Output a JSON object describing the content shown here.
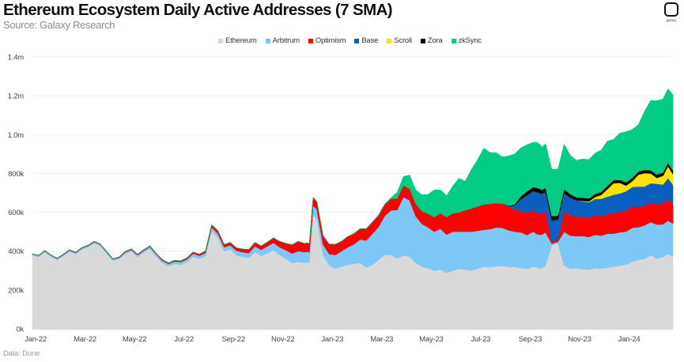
{
  "header": {
    "title": "Ethereum Ecosystem Daily Active Addresses (7 SMA)",
    "subtitle": "Source: Galaxy Research",
    "logo_text": "galaxy"
  },
  "footer": {
    "source": "Data: Dune"
  },
  "chart_data": {
    "type": "area",
    "stacked": true,
    "title": "Ethereum Ecosystem Daily Active Addresses (7 SMA)",
    "subtitle": "Source: Galaxy Research",
    "xlabel": "",
    "ylabel": "",
    "ylim": [
      0,
      1400000
    ],
    "yticks": [
      0,
      200000,
      400000,
      600000,
      800000,
      1000000,
      1200000,
      1400000
    ],
    "ytick_labels": [
      "0k",
      "200k",
      "400k",
      "600k",
      "800k",
      "1.0m",
      "1.2m",
      "1.4m"
    ],
    "xtick_labels": [
      "Jan-22",
      "Mar-22",
      "May-22",
      "Jul-22",
      "Sep-22",
      "Nov-22",
      "Jan-23",
      "Mar-23",
      "May-23",
      "Jul-23",
      "Sep-23",
      "Nov-23",
      "Jan-24"
    ],
    "xtick_months": [
      0,
      2,
      4,
      6,
      8,
      10,
      12,
      14,
      16,
      18,
      20,
      22,
      24
    ],
    "x_unit": "months since Jan 2022 (weekly samples)",
    "x_range": [
      0,
      25.9
    ],
    "grid": "horizontal",
    "legend_position": "top-center",
    "value_unit": "thousands of addresses",
    "x": [
      0,
      0.25,
      0.5,
      0.75,
      1,
      1.25,
      1.5,
      1.75,
      2,
      2.25,
      2.5,
      2.75,
      3,
      3.25,
      3.5,
      3.75,
      4,
      4.25,
      4.5,
      4.75,
      5,
      5.25,
      5.5,
      5.75,
      6,
      6.25,
      6.5,
      6.75,
      7,
      7.25,
      7.5,
      7.75,
      8,
      8.25,
      8.5,
      8.75,
      9,
      9.25,
      9.5,
      9.75,
      10,
      10.25,
      10.5,
      10.75,
      11,
      11.1,
      11.2,
      11.35,
      11.5,
      11.75,
      12,
      12.25,
      12.5,
      12.75,
      13,
      13.25,
      13.5,
      13.75,
      14,
      14.25,
      14.5,
      14.75,
      15,
      15.25,
      15.5,
      15.75,
      16,
      16.25,
      16.5,
      16.75,
      17,
      17.25,
      17.5,
      17.75,
      18,
      18.25,
      18.5,
      18.75,
      19,
      19.25,
      19.5,
      19.75,
      20,
      20.25,
      20.4,
      20.5,
      20.6,
      20.75,
      21,
      21.25,
      21.5,
      21.75,
      22,
      22.25,
      22.5,
      22.75,
      23,
      23.25,
      23.5,
      23.75,
      24,
      24.25,
      24.5,
      24.75,
      25,
      25.25,
      25.5,
      25.7,
      25.9
    ],
    "series": [
      {
        "name": "Ethereum",
        "color": "#d9d9d9",
        "values": [
          378,
          370,
          395,
          372,
          355,
          375,
          398,
          385,
          408,
          420,
          440,
          425,
          388,
          350,
          358,
          385,
          398,
          370,
          392,
          412,
          372,
          340,
          322,
          335,
          330,
          345,
          372,
          360,
          375,
          505,
          470,
          400,
          410,
          380,
          370,
          365,
          395,
          375,
          390,
          405,
          380,
          360,
          338,
          345,
          340,
          342,
          340,
          585,
          565,
          380,
          325,
          310,
          320,
          330,
          335,
          340,
          315,
          330,
          355,
          382,
          380,
          362,
          378,
          372,
          340,
          320,
          312,
          300,
          305,
          290,
          300,
          310,
          305,
          300,
          310,
          320,
          318,
          322,
          325,
          318,
          320,
          312,
          308,
          320,
          318,
          310,
          315,
          325,
          430,
          440,
          325,
          310,
          312,
          308,
          305,
          312,
          310,
          315,
          320,
          325,
          330,
          345,
          355,
          360,
          380,
          362,
          370,
          385,
          372,
          358,
          370,
          380,
          375
        ]
      },
      {
        "name": "Arbitrum",
        "color": "#7ec8f8",
        "values": [
          6,
          6,
          6,
          6,
          6,
          6,
          6,
          6,
          7,
          7,
          8,
          8,
          8,
          8,
          8,
          9,
          10,
          10,
          11,
          11,
          12,
          12,
          12,
          12,
          14,
          14,
          15,
          16,
          16,
          18,
          20,
          20,
          20,
          22,
          25,
          25,
          30,
          32,
          35,
          38,
          40,
          45,
          50,
          55,
          55,
          55,
          55,
          50,
          50,
          55,
          60,
          70,
          80,
          90,
          100,
          120,
          140,
          160,
          170,
          200,
          230,
          250,
          300,
          290,
          240,
          220,
          210,
          200,
          210,
          195,
          200,
          190,
          195,
          200,
          195,
          190,
          195,
          200,
          195,
          190,
          180,
          185,
          175,
          180,
          170,
          175,
          170,
          172,
          8,
          8,
          175,
          170,
          165,
          170,
          168,
          172,
          170,
          175,
          170,
          172,
          170,
          175,
          168,
          172,
          170,
          175,
          168,
          172,
          170,
          168,
          165,
          170,
          170
        ]
      },
      {
        "name": "Optimism",
        "color": "#ff0000",
        "values": [
          2,
          2,
          2,
          2,
          3,
          3,
          3,
          3,
          3,
          3,
          3,
          3,
          3,
          3,
          3,
          4,
          4,
          4,
          4,
          4,
          5,
          5,
          5,
          6,
          6,
          7,
          8,
          8,
          10,
          12,
          15,
          14,
          15,
          15,
          16,
          18,
          20,
          20,
          22,
          25,
          30,
          35,
          45,
          50,
          45,
          45,
          45,
          40,
          40,
          45,
          50,
          55,
          50,
          55,
          55,
          55,
          60,
          60,
          60,
          60,
          60,
          60,
          60,
          60,
          65,
          65,
          70,
          75,
          80,
          90,
          95,
          100,
          110,
          120,
          125,
          130,
          130,
          125,
          125,
          120,
          115,
          110,
          115,
          110,
          110,
          105,
          110,
          108,
          10,
          10,
          105,
          105,
          100,
          100,
          98,
          100,
          100,
          100,
          105,
          105,
          108,
          110,
          105,
          100,
          100,
          105,
          105,
          110,
          100,
          100,
          100,
          105,
          108
        ]
      },
      {
        "name": "Base",
        "color": "#0a5fbf",
        "values": [
          0,
          0,
          0,
          0,
          0,
          0,
          0,
          0,
          0,
          0,
          0,
          0,
          0,
          0,
          0,
          0,
          0,
          0,
          0,
          0,
          0,
          0,
          0,
          0,
          0,
          0,
          0,
          0,
          0,
          0,
          0,
          0,
          0,
          0,
          0,
          0,
          0,
          0,
          0,
          0,
          0,
          0,
          0,
          0,
          0,
          0,
          0,
          0,
          0,
          0,
          0,
          0,
          0,
          0,
          0,
          0,
          0,
          0,
          0,
          0,
          0,
          0,
          0,
          0,
          0,
          0,
          0,
          0,
          0,
          0,
          0,
          0,
          0,
          0,
          0,
          0,
          0,
          0,
          0,
          5,
          20,
          60,
          90,
          100,
          105,
          110,
          100,
          100,
          110,
          105,
          95,
          90,
          85,
          80,
          80,
          85,
          90,
          90,
          95,
          95,
          100,
          100,
          105,
          100,
          100,
          105,
          100,
          110,
          100,
          100,
          100,
          105,
          105
        ]
      },
      {
        "name": "Scroll",
        "color": "#ffe100",
        "values": [
          0,
          0,
          0,
          0,
          0,
          0,
          0,
          0,
          0,
          0,
          0,
          0,
          0,
          0,
          0,
          0,
          0,
          0,
          0,
          0,
          0,
          0,
          0,
          0,
          0,
          0,
          0,
          0,
          0,
          0,
          0,
          0,
          0,
          0,
          0,
          0,
          0,
          0,
          0,
          0,
          0,
          0,
          0,
          0,
          0,
          0,
          0,
          0,
          0,
          0,
          0,
          0,
          0,
          0,
          0,
          0,
          0,
          0,
          0,
          0,
          0,
          0,
          0,
          0,
          0,
          0,
          0,
          0,
          0,
          0,
          0,
          0,
          0,
          0,
          0,
          0,
          0,
          0,
          0,
          0,
          0,
          0,
          0,
          0,
          0,
          0,
          0,
          0,
          0,
          0,
          0,
          0,
          0,
          2,
          5,
          10,
          20,
          40,
          60,
          55,
          30,
          30,
          60,
          70,
          50,
          30,
          45,
          60,
          55,
          40,
          60,
          55,
          60
        ]
      },
      {
        "name": "Zora",
        "color": "#000000",
        "values": [
          0,
          0,
          0,
          0,
          0,
          0,
          0,
          0,
          0,
          0,
          0,
          0,
          0,
          0,
          0,
          0,
          0,
          0,
          0,
          0,
          0,
          0,
          0,
          0,
          0,
          0,
          0,
          0,
          0,
          0,
          0,
          0,
          0,
          0,
          0,
          0,
          0,
          0,
          0,
          0,
          0,
          0,
          0,
          0,
          0,
          0,
          0,
          0,
          0,
          0,
          0,
          0,
          0,
          0,
          0,
          0,
          0,
          0,
          0,
          0,
          0,
          0,
          0,
          0,
          0,
          0,
          0,
          0,
          0,
          0,
          0,
          0,
          0,
          0,
          0,
          0,
          0,
          0,
          0,
          2,
          5,
          15,
          20,
          20,
          22,
          22,
          20,
          22,
          22,
          20,
          20,
          18,
          15,
          15,
          15,
          15,
          15,
          16,
          15,
          15,
          16,
          16,
          17,
          16,
          16,
          17,
          16,
          18,
          17,
          16,
          17,
          18,
          18
        ]
      },
      {
        "name": "zkSync",
        "color": "#02cb84",
        "values": [
          0,
          0,
          0,
          0,
          0,
          0,
          0,
          0,
          0,
          0,
          0,
          0,
          0,
          0,
          0,
          0,
          0,
          0,
          0,
          0,
          0,
          0,
          0,
          0,
          0,
          0,
          0,
          0,
          0,
          0,
          0,
          0,
          0,
          0,
          0,
          0,
          0,
          0,
          0,
          0,
          0,
          0,
          0,
          0,
          0,
          0,
          0,
          0,
          0,
          0,
          0,
          0,
          0,
          0,
          0,
          0,
          0,
          0,
          0,
          0,
          5,
          30,
          45,
          70,
          70,
          85,
          100,
          140,
          120,
          110,
          140,
          175,
          150,
          200,
          240,
          290,
          265,
          260,
          240,
          255,
          260,
          250,
          240,
          230,
          235,
          230,
          220,
          225,
          240,
          240,
          230,
          200,
          190,
          200,
          200,
          210,
          215,
          230,
          210,
          240,
          260,
          250,
          240,
          300,
          360,
          380,
          380,
          380,
          390,
          320,
          420,
          360,
          430
        ]
      }
    ]
  }
}
